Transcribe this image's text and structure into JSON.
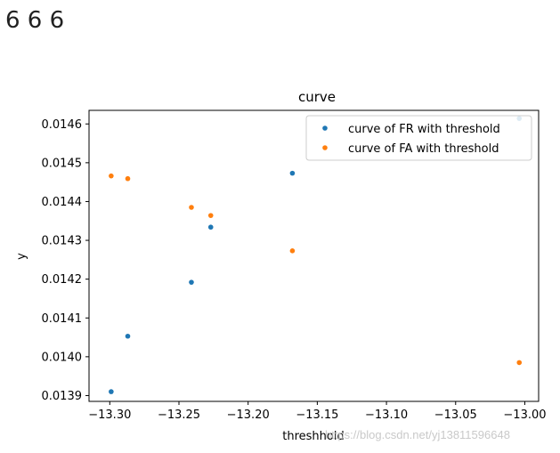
{
  "header": {
    "text": "6 6 6"
  },
  "watermark": "https://blog.csdn.net/yj13811596648",
  "chart_data": {
    "type": "scatter",
    "title": "curve",
    "xlabel": "threshhold",
    "ylabel": "y",
    "xlim": [
      -13.315,
      -12.99
    ],
    "ylim": [
      0.013885,
      0.014635
    ],
    "xticks": [
      -13.3,
      -13.25,
      -13.2,
      -13.15,
      -13.1,
      -13.05,
      -13.0
    ],
    "xtick_labels": [
      "−13.30",
      "−13.25",
      "−13.20",
      "−13.15",
      "−13.10",
      "−13.05",
      "−13.00"
    ],
    "yticks": [
      0.0139,
      0.014,
      0.0141,
      0.0142,
      0.0143,
      0.0144,
      0.0145,
      0.0146
    ],
    "ytick_labels": [
      "0.0139",
      "0.0140",
      "0.0141",
      "0.0142",
      "0.0143",
      "0.0144",
      "0.0145",
      "0.0146"
    ],
    "legend_position": "top-right",
    "series": [
      {
        "name": "curve of FR with threshold",
        "color": "#1f77b4",
        "x": [
          -13.299,
          -13.287,
          -13.241,
          -13.227,
          -13.168,
          -13.004
        ],
        "y": [
          0.01391,
          0.014053,
          0.014192,
          0.014334,
          0.014473,
          0.014614
        ]
      },
      {
        "name": "curve of FA with threshold",
        "color": "#ff7f0e",
        "x": [
          -13.299,
          -13.287,
          -13.241,
          -13.227,
          -13.168,
          -13.004
        ],
        "y": [
          0.014466,
          0.014459,
          0.014385,
          0.014364,
          0.014273,
          0.013985
        ]
      }
    ]
  }
}
